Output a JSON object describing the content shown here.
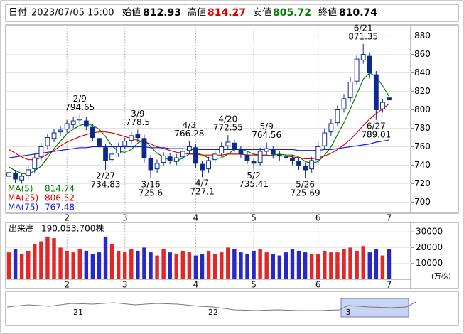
{
  "chart_data": {
    "type": "candlestick",
    "header": {
      "date_label": "日付",
      "date": "2023/07/05 15:00",
      "open_label": "始値",
      "open": 812.93,
      "high_label": "高値",
      "high": 814.27,
      "low_label": "安値",
      "low": 805.72,
      "close_label": "終値",
      "close": 810.74
    },
    "categories": [
      null,
      null,
      null,
      null,
      null,
      null,
      null,
      null,
      null,
      "2",
      null,
      null,
      null,
      null,
      null,
      null,
      null,
      null,
      "3",
      null,
      null,
      null,
      null,
      null,
      null,
      null,
      null,
      null,
      null,
      "4",
      null,
      null,
      null,
      null,
      null,
      null,
      null,
      null,
      "5",
      null,
      null,
      null,
      null,
      null,
      null,
      null,
      null,
      null,
      "6",
      null,
      null,
      null,
      null,
      null,
      null,
      null,
      null,
      null,
      null,
      "7"
    ],
    "open": [
      728,
      731,
      724,
      729,
      736,
      749,
      761,
      769,
      776,
      779,
      784,
      789,
      788,
      781,
      769,
      759,
      746,
      753,
      761,
      767,
      773,
      769,
      747,
      736,
      743,
      749,
      744,
      749,
      756,
      759,
      741,
      736,
      746,
      753,
      761,
      764,
      757,
      751,
      744,
      743,
      755,
      757,
      751,
      749,
      747,
      744,
      739,
      736,
      746,
      761,
      776,
      786,
      801,
      813,
      831,
      854,
      858,
      838,
      801,
      812.93
    ],
    "high": [
      736,
      735,
      732,
      739,
      752,
      764,
      774,
      779,
      782,
      789,
      792,
      794.65,
      792,
      785,
      773,
      763,
      756,
      764,
      770,
      776,
      778.5,
      773,
      751,
      746,
      754,
      753,
      752,
      759,
      766.28,
      763,
      745,
      749,
      757,
      765,
      772.55,
      768,
      761,
      755,
      748,
      759,
      764.56,
      761,
      755,
      753,
      751,
      748,
      743,
      749,
      765,
      780,
      790,
      805,
      817,
      835,
      859,
      871.35,
      862,
      842,
      812,
      814.27
    ],
    "low": [
      724,
      721,
      720,
      725,
      732,
      745,
      757,
      765,
      772,
      775,
      780,
      785,
      778,
      766,
      756,
      734.83,
      742,
      749,
      757,
      763,
      765,
      743,
      725.6,
      732,
      739,
      741,
      740,
      745,
      752,
      737,
      727.1,
      732,
      742,
      749,
      757,
      754,
      748,
      741,
      735.41,
      739,
      751,
      747,
      745,
      743,
      740,
      735,
      725.69,
      732,
      742,
      757,
      772,
      782,
      797,
      809,
      827,
      850,
      834,
      789.01,
      797,
      805.72
    ],
    "close": [
      732,
      725,
      728,
      735,
      748,
      760,
      770,
      775,
      778,
      785,
      788,
      790,
      782,
      770,
      760,
      745,
      752,
      760,
      766,
      772,
      770,
      748,
      735,
      742,
      750,
      745,
      748,
      755,
      760,
      742,
      735,
      745,
      752,
      760,
      765,
      758,
      752,
      745,
      742,
      755,
      758,
      752,
      750,
      748,
      745,
      740,
      735,
      745,
      760,
      775,
      785,
      800,
      812,
      830,
      855,
      860,
      840,
      800,
      808,
      810.74
    ],
    "up_color": "#ffffff",
    "down_color": "#0a2a8c",
    "ylim": [
      688,
      892
    ],
    "yticks": [
      700,
      720,
      740,
      760,
      780,
      800,
      820,
      840,
      860,
      880
    ],
    "grid": true,
    "series": [
      {
        "name": "MA(5)",
        "color": "#008000",
        "values": [
          738,
          734,
          731,
          730,
          734,
          739,
          748,
          758,
          766,
          774,
          779,
          783,
          785,
          783,
          779,
          771,
          761,
          755,
          754,
          757,
          764,
          768,
          760,
          753,
          749,
          745,
          744,
          748,
          752,
          754,
          751,
          748,
          747,
          748,
          752,
          757,
          758,
          755,
          752,
          751,
          750,
          751,
          752,
          751,
          751,
          749,
          744,
          742,
          744,
          751,
          760,
          773,
          786,
          801,
          817,
          833,
          840,
          836,
          826,
          814.74
        ]
      },
      {
        "name": "MA(25)",
        "color": "#e00000",
        "values": [
          757,
          753,
          749,
          746,
          746,
          748,
          752,
          756,
          761,
          765,
          768,
          771,
          773,
          775,
          776,
          776,
          775,
          773,
          771,
          769,
          767,
          765,
          763,
          760,
          758,
          756,
          754,
          753,
          752,
          752,
          751,
          751,
          751,
          751,
          752,
          752,
          752,
          751,
          751,
          751,
          751,
          750,
          750,
          750,
          749,
          748,
          747,
          747,
          748,
          750,
          753,
          757,
          762,
          768,
          775,
          783,
          790,
          796,
          801,
          806.52
        ]
      },
      {
        "name": "MA(75)",
        "color": "#1a1adc",
        "values": [
          748,
          749,
          750,
          751,
          752,
          753,
          754,
          755,
          756,
          757,
          758,
          759,
          759,
          760,
          760,
          760,
          760,
          760,
          760,
          760,
          760,
          760,
          759,
          759,
          759,
          758,
          758,
          758,
          757,
          757,
          757,
          757,
          757,
          757,
          757,
          757,
          757,
          757,
          757,
          757,
          757,
          757,
          757,
          757,
          757,
          756,
          756,
          756,
          756,
          757,
          757,
          758,
          759,
          760,
          761,
          762,
          763,
          765,
          766,
          767.48
        ]
      }
    ],
    "annotations": [
      {
        "date": "2/9",
        "value": 794.65,
        "kind": "high"
      },
      {
        "date": "2/27",
        "value": 734.83,
        "kind": "low"
      },
      {
        "date": "3/9",
        "value": 778.5,
        "kind": "high"
      },
      {
        "date": "3/16",
        "value": 725.6,
        "kind": "low"
      },
      {
        "date": "4/3",
        "value": 766.28,
        "kind": "high"
      },
      {
        "date": "4/7",
        "value": 727.1,
        "kind": "low"
      },
      {
        "date": "4/20",
        "value": 772.55,
        "kind": "high"
      },
      {
        "date": "5/2",
        "value": 735.41,
        "kind": "low"
      },
      {
        "date": "5/9",
        "value": 764.56,
        "kind": "high"
      },
      {
        "date": "5/26",
        "value": 725.69,
        "kind": "low"
      },
      {
        "date": "6/21",
        "value": 871.35,
        "kind": "high"
      },
      {
        "date": "6/27",
        "value": 789.01,
        "kind": "low"
      }
    ],
    "volume": {
      "label": "出来高",
      "text": "190,053,700株",
      "unit": "(万株)",
      "up_color": "#e02828",
      "down_color": "#2828c8",
      "values": [
        17000,
        19000,
        16000,
        18000,
        22000,
        24000,
        27000,
        26000,
        20000,
        18000,
        17000,
        19000,
        18000,
        16000,
        17000,
        27000,
        22000,
        18000,
        17000,
        19000,
        18000,
        20000,
        17000,
        15000,
        19000,
        17000,
        16000,
        18000,
        17000,
        15000,
        16000,
        18000,
        16000,
        17000,
        20000,
        19000,
        17000,
        16000,
        18000,
        19000,
        17000,
        16000,
        15000,
        17000,
        19000,
        18000,
        17000,
        16000,
        16000,
        18000,
        17000,
        17000,
        19000,
        20000,
        18000,
        21000,
        17000,
        19000,
        15000,
        19005.37
      ],
      "ylim": [
        0,
        35000
      ],
      "yticks": [
        10000,
        20000,
        30000
      ]
    },
    "navigator": {
      "labels": [
        "21",
        "22",
        "3"
      ]
    }
  }
}
